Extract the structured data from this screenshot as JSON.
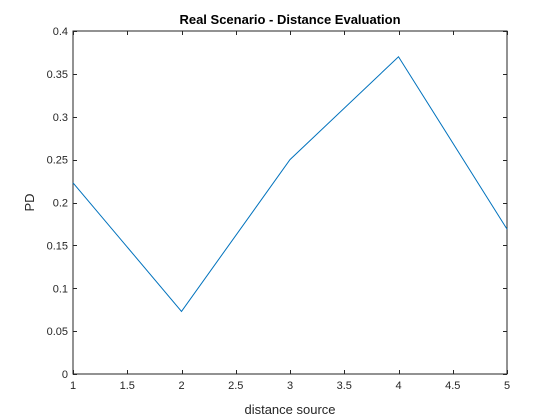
{
  "chart_data": {
    "type": "line",
    "title": "Real Scenario - Distance Evaluation",
    "xlabel": "distance source",
    "ylabel": "PD",
    "xlim": [
      1,
      5
    ],
    "ylim": [
      0,
      0.4
    ],
    "xticks": [
      1,
      1.5,
      2,
      2.5,
      3,
      3.5,
      4,
      4.5,
      5
    ],
    "xtick_labels": [
      "1",
      "1.5",
      "2",
      "2.5",
      "3",
      "3.5",
      "4",
      "4.5",
      "5"
    ],
    "yticks": [
      0,
      0.05,
      0.1,
      0.15,
      0.2,
      0.25,
      0.3,
      0.35,
      0.4
    ],
    "ytick_labels": [
      "0",
      "0.05",
      "0.1",
      "0.15",
      "0.2",
      "0.25",
      "0.3",
      "0.35",
      "0.4"
    ],
    "grid": false,
    "series": [
      {
        "x": [
          1,
          2,
          3,
          4,
          5
        ],
        "values": [
          0.223,
          0.073,
          0.25,
          0.37,
          0.169
        ],
        "color": "#0072BD"
      }
    ]
  }
}
